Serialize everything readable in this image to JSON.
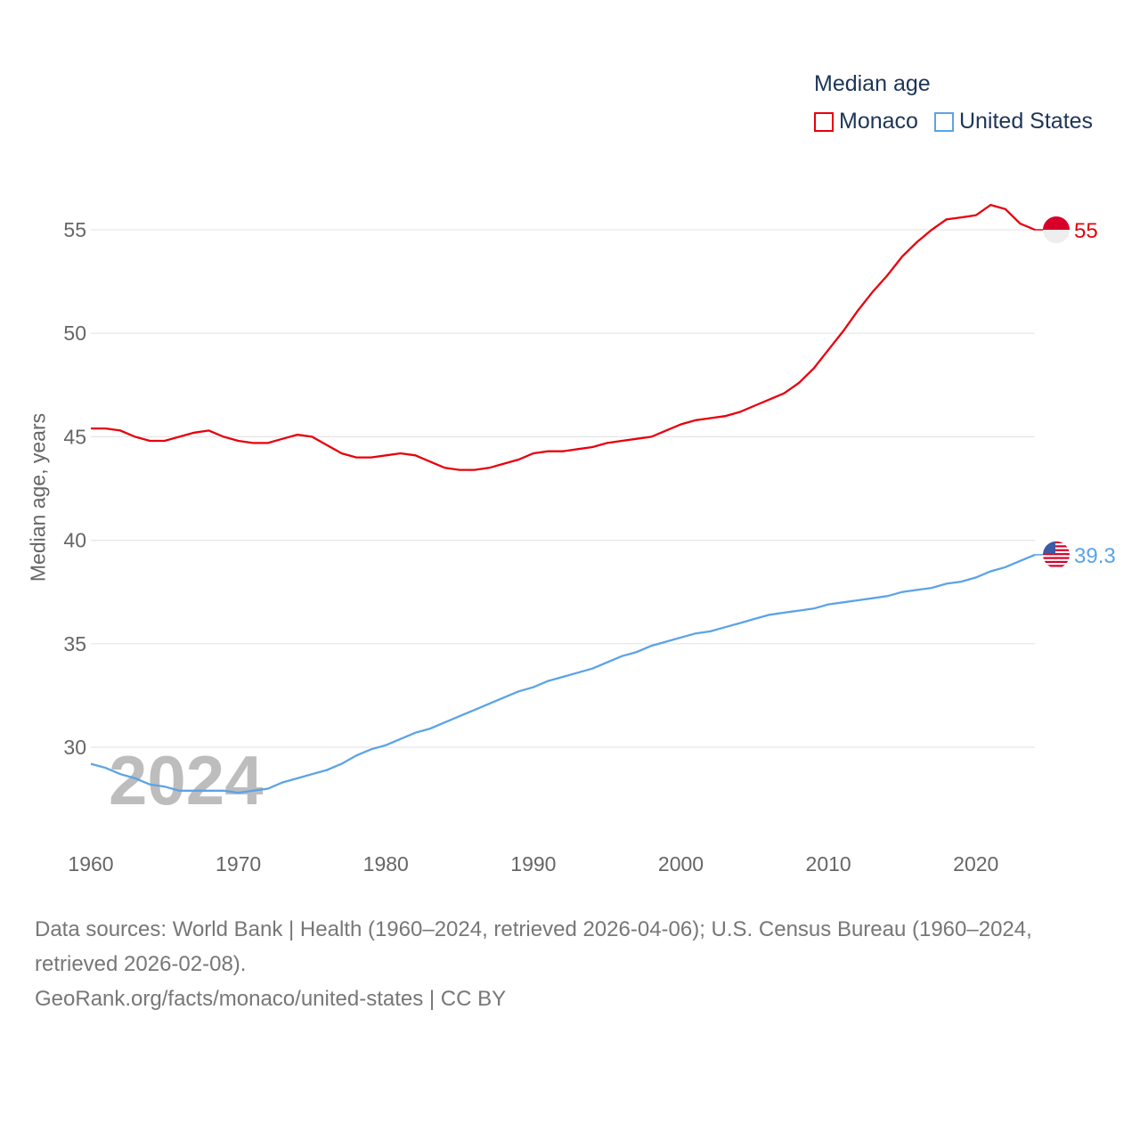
{
  "chart_data": {
    "type": "line",
    "title": "Median age",
    "ylabel": "Median age, years",
    "xlabel": "",
    "ylim": [
      26,
      57.5
    ],
    "xlim": [
      1960,
      2024
    ],
    "yticks": [
      30,
      35,
      40,
      45,
      50,
      55
    ],
    "xticks": [
      1960,
      1970,
      1980,
      1990,
      2000,
      2010,
      2020
    ],
    "grid": true,
    "legend_placement": "top-right",
    "year_overlay": "2024",
    "x": [
      1960,
      1961,
      1962,
      1963,
      1964,
      1965,
      1966,
      1967,
      1968,
      1969,
      1970,
      1971,
      1972,
      1973,
      1974,
      1975,
      1976,
      1977,
      1978,
      1979,
      1980,
      1981,
      1982,
      1983,
      1984,
      1985,
      1986,
      1987,
      1988,
      1989,
      1990,
      1991,
      1992,
      1993,
      1994,
      1995,
      1996,
      1997,
      1998,
      1999,
      2000,
      2001,
      2002,
      2003,
      2004,
      2005,
      2006,
      2007,
      2008,
      2009,
      2010,
      2011,
      2012,
      2013,
      2014,
      2015,
      2016,
      2017,
      2018,
      2019,
      2020,
      2021,
      2022,
      2023,
      2024
    ],
    "series": [
      {
        "name": "Monaco",
        "color": "#e8000b",
        "end_label": "55",
        "values": [
          45.4,
          45.4,
          45.3,
          45.0,
          44.8,
          44.8,
          45.0,
          45.2,
          45.3,
          45.0,
          44.8,
          44.7,
          44.7,
          44.9,
          45.1,
          45.0,
          44.6,
          44.2,
          44.0,
          44.0,
          44.1,
          44.2,
          44.1,
          43.8,
          43.5,
          43.4,
          43.4,
          43.5,
          43.7,
          43.9,
          44.2,
          44.3,
          44.3,
          44.4,
          44.5,
          44.7,
          44.8,
          44.9,
          45.0,
          45.3,
          45.6,
          45.8,
          45.9,
          46.0,
          46.2,
          46.5,
          46.8,
          47.1,
          47.6,
          48.3,
          49.2,
          50.1,
          51.1,
          52.0,
          52.8,
          53.7,
          54.4,
          55.0,
          55.5,
          55.6,
          55.7,
          56.2,
          56.0,
          55.3,
          55.0
        ]
      },
      {
        "name": "United States",
        "color": "#5ba3e8",
        "end_label": "39.3",
        "values": [
          29.2,
          29.0,
          28.7,
          28.5,
          28.2,
          28.1,
          27.9,
          27.9,
          27.9,
          27.9,
          27.8,
          27.9,
          28.0,
          28.3,
          28.5,
          28.7,
          28.9,
          29.2,
          29.6,
          29.9,
          30.1,
          30.4,
          30.7,
          30.9,
          31.2,
          31.5,
          31.8,
          32.1,
          32.4,
          32.7,
          32.9,
          33.2,
          33.4,
          33.6,
          33.8,
          34.1,
          34.4,
          34.6,
          34.9,
          35.1,
          35.3,
          35.5,
          35.6,
          35.8,
          36.0,
          36.2,
          36.4,
          36.5,
          36.6,
          36.7,
          36.9,
          37.0,
          37.1,
          37.2,
          37.3,
          37.5,
          37.6,
          37.7,
          37.9,
          38.0,
          38.2,
          38.5,
          38.7,
          39.0,
          39.3
        ]
      }
    ]
  },
  "footer": {
    "line1": "Data sources: World Bank | Health (1960–2024, retrieved 2026-04-06); U.S. Census Bureau (1960–2024, retrieved 2026-02-08).",
    "line2": "GeoRank.org/facts/monaco/united-states | CC BY"
  }
}
